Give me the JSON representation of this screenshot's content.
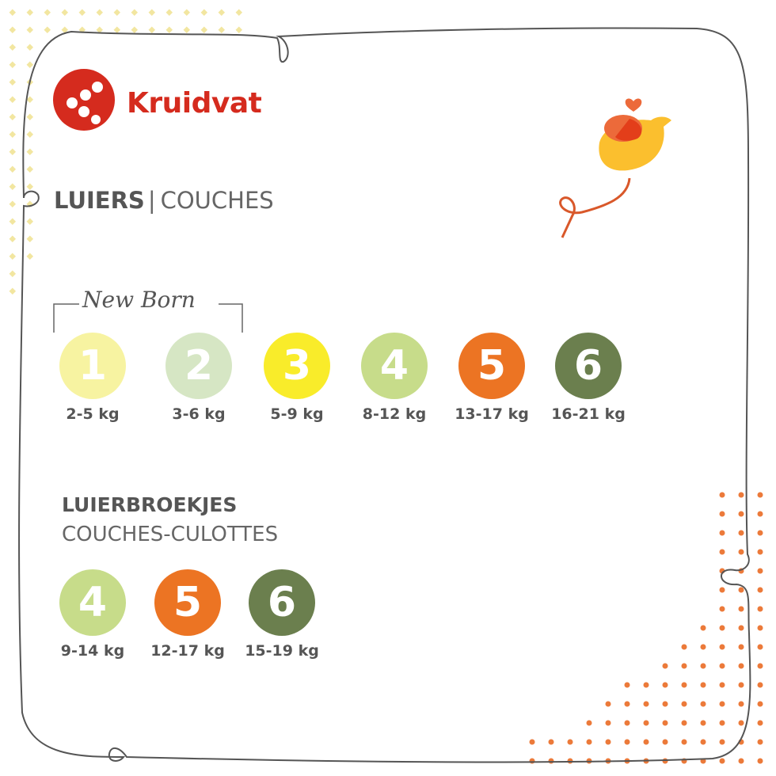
{
  "brand": {
    "name": "Kruidvat",
    "color": "#d52b1e"
  },
  "diapers": {
    "title_nl": "LUIERS",
    "separator": "|",
    "title_fr": "COUCHES",
    "newborn_label": "New Born",
    "sizes": [
      {
        "number": "1",
        "weight": "2-5 kg",
        "color": "#f7f3a1"
      },
      {
        "number": "2",
        "weight": "3-6 kg",
        "color": "#d6e6c4"
      },
      {
        "number": "3",
        "weight": "5-9 kg",
        "color": "#f9ec2a"
      },
      {
        "number": "4",
        "weight": "8-12 kg",
        "color": "#c7dc8a"
      },
      {
        "number": "5",
        "weight": "13-17 kg",
        "color": "#ec7423"
      },
      {
        "number": "6",
        "weight": "16-21 kg",
        "color": "#6b7f4e"
      }
    ]
  },
  "pants": {
    "title_nl": "LUIERBROEKJES",
    "title_fr": "COUCHES-CULOTTES",
    "sizes": [
      {
        "number": "4",
        "weight": "9-14 kg",
        "color": "#c7dc8a"
      },
      {
        "number": "5",
        "weight": "12-17 kg",
        "color": "#ec7423"
      },
      {
        "number": "6",
        "weight": "15-19 kg",
        "color": "#6b7f4e"
      }
    ]
  },
  "icons": {
    "logo": "kruidvat-dots-logo",
    "mascot": "bird-with-heart-icon"
  }
}
